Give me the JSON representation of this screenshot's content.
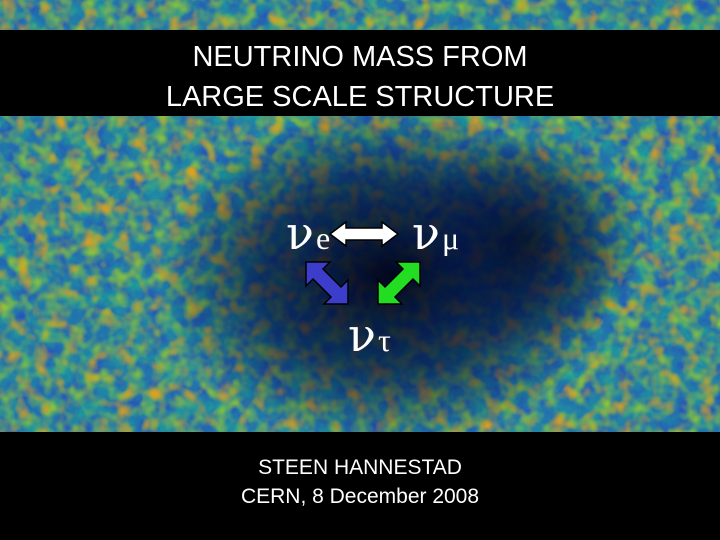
{
  "slide": {
    "title_line1": "NEUTRINO MASS FROM",
    "title_line2": "LARGE SCALE STRUCTURE",
    "author": "STEEN HANNESTAD",
    "venue_date": "CERN, 8 December 2008"
  },
  "diagram": {
    "nu_symbol": "ν",
    "electron_sub": "e",
    "muon_sub": "μ",
    "tau_sub": "τ"
  },
  "colors": {
    "arrow_e_mu": "#ffffff",
    "arrow_e_tau": "#3d3dcc",
    "arrow_mu_tau": "#22dd22",
    "background_map": "cmb-temperature-map"
  }
}
